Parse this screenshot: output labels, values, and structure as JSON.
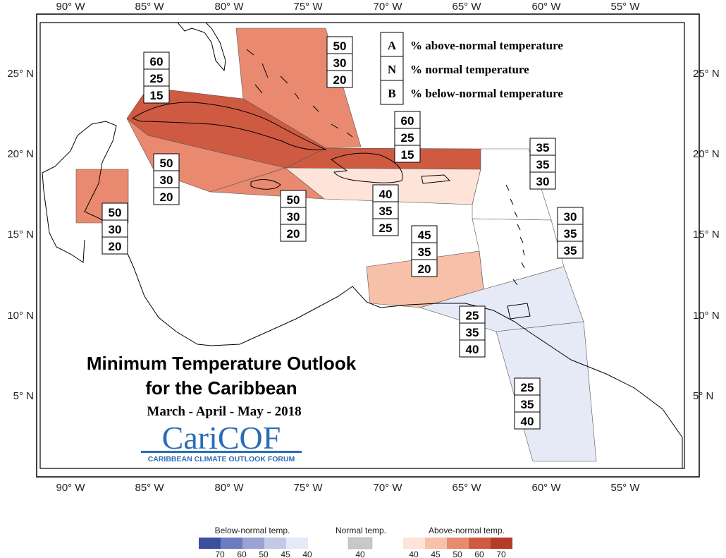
{
  "map": {
    "lon_labels": [
      "90° W",
      "85° W",
      "80° W",
      "75° W",
      "70° W",
      "65° W",
      "60° W",
      "55° W"
    ],
    "lat_labels": [
      "25° N",
      "20° N",
      "15° N",
      "10° N",
      "5° N"
    ],
    "legend_key": [
      {
        "code": "A",
        "text": "% above-normal temperature"
      },
      {
        "code": "N",
        "text": "% normal temperature"
      },
      {
        "code": "B",
        "text": "% below-normal temperature"
      }
    ],
    "title": "Minimum Temperature Outlook",
    "title_line2": "for the Caribbean",
    "season": "March - April - May - 2018",
    "logo": {
      "name": "CariCOF",
      "org": "CARIBBEAN CLIMATE OUTLOOK FORUM"
    },
    "regions": [
      {
        "id": "bahamas",
        "above": 50,
        "normal": 30,
        "below": 20,
        "fill": "#e98a70"
      },
      {
        "id": "cuba",
        "above": 60,
        "normal": 25,
        "below": 15,
        "fill": "#cf5a42"
      },
      {
        "id": "north-hispaniola",
        "above": 60,
        "normal": 25,
        "below": 15,
        "fill": "#cf5a42"
      },
      {
        "id": "cayman-jamaica",
        "above": 50,
        "normal": 30,
        "below": 20,
        "fill": "#e98a70"
      },
      {
        "id": "belize",
        "above": 50,
        "normal": 30,
        "below": 20,
        "fill": "#e98a70"
      },
      {
        "id": "jamaica-south",
        "above": 50,
        "normal": 30,
        "below": 20,
        "fill": "#e98a70"
      },
      {
        "id": "hispaniola-pr",
        "above": 40,
        "normal": 35,
        "below": 25,
        "fill": "#fde3d8"
      },
      {
        "id": "northern-leewards",
        "above": 35,
        "normal": 35,
        "below": 30,
        "fill": "#ffffff"
      },
      {
        "id": "windwards",
        "above": 30,
        "normal": 35,
        "below": 35,
        "fill": "#ffffff"
      },
      {
        "id": "abc-islands",
        "above": 45,
        "normal": 35,
        "below": 20,
        "fill": "#f7c0a9"
      },
      {
        "id": "trinidad",
        "above": 25,
        "normal": 35,
        "below": 40,
        "fill": "#e6eaf7"
      },
      {
        "id": "guianas",
        "above": 25,
        "normal": 35,
        "below": 40,
        "fill": "#e6eaf7"
      }
    ],
    "colorbar": {
      "below_label": "Below-normal temp.",
      "normal_label": "Normal temp.",
      "above_label": "Above-normal temp.",
      "below_colors": [
        "#3d4f9f",
        "#6d7bc0",
        "#9aa3d4",
        "#c4c9e8",
        "#e6e9f7"
      ],
      "below_ticks": [
        "70",
        "60",
        "50",
        "45",
        "40"
      ],
      "normal_color": "#c8c8c8",
      "normal_ticks": [
        "40"
      ],
      "above_colors": [
        "#fde3d8",
        "#f7c0a9",
        "#e98a70",
        "#cf5a42",
        "#b73b2b"
      ],
      "above_ticks": [
        "40",
        "45",
        "50",
        "60",
        "70"
      ]
    }
  }
}
